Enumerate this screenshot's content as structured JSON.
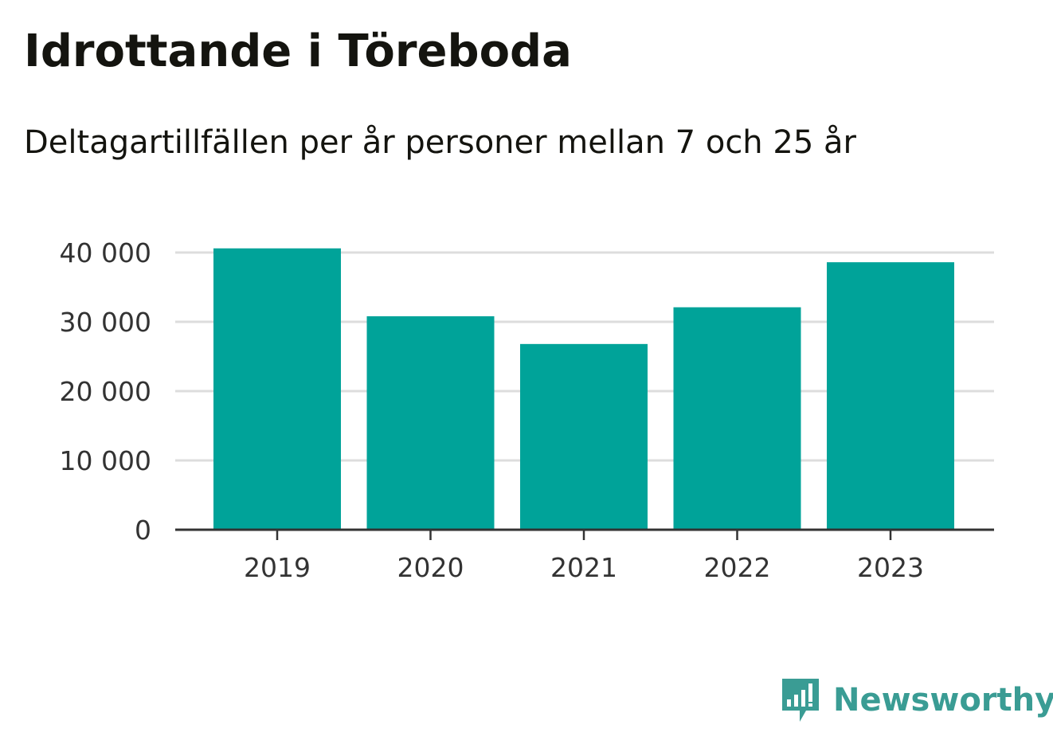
{
  "header": {
    "title": "Idrottande i Töreboda",
    "subtitle": "Deltagartillfällen per år personer mellan 7 och 25 år"
  },
  "brand": {
    "name": "Newsworthy",
    "color": "#3a9c94"
  },
  "colors": {
    "bar": "#00a399",
    "grid": "#dddddd",
    "axis": "#333333",
    "text": "#14140f"
  },
  "chart_data": {
    "type": "bar",
    "categories": [
      "2019",
      "2020",
      "2021",
      "2022",
      "2023"
    ],
    "values": [
      40600,
      30800,
      26800,
      32100,
      38600
    ],
    "title": "Idrottande i Töreboda",
    "subtitle": "Deltagartillfällen per år personer mellan 7 och 25 år",
    "xlabel": "",
    "ylabel": "",
    "ylim": [
      0,
      40000
    ],
    "yticks": [
      0,
      10000,
      20000,
      30000,
      40000
    ],
    "ytick_labels": [
      "0",
      "10 000",
      "20 000",
      "30 000",
      "40 000"
    ],
    "grid": true,
    "legend": "none"
  }
}
